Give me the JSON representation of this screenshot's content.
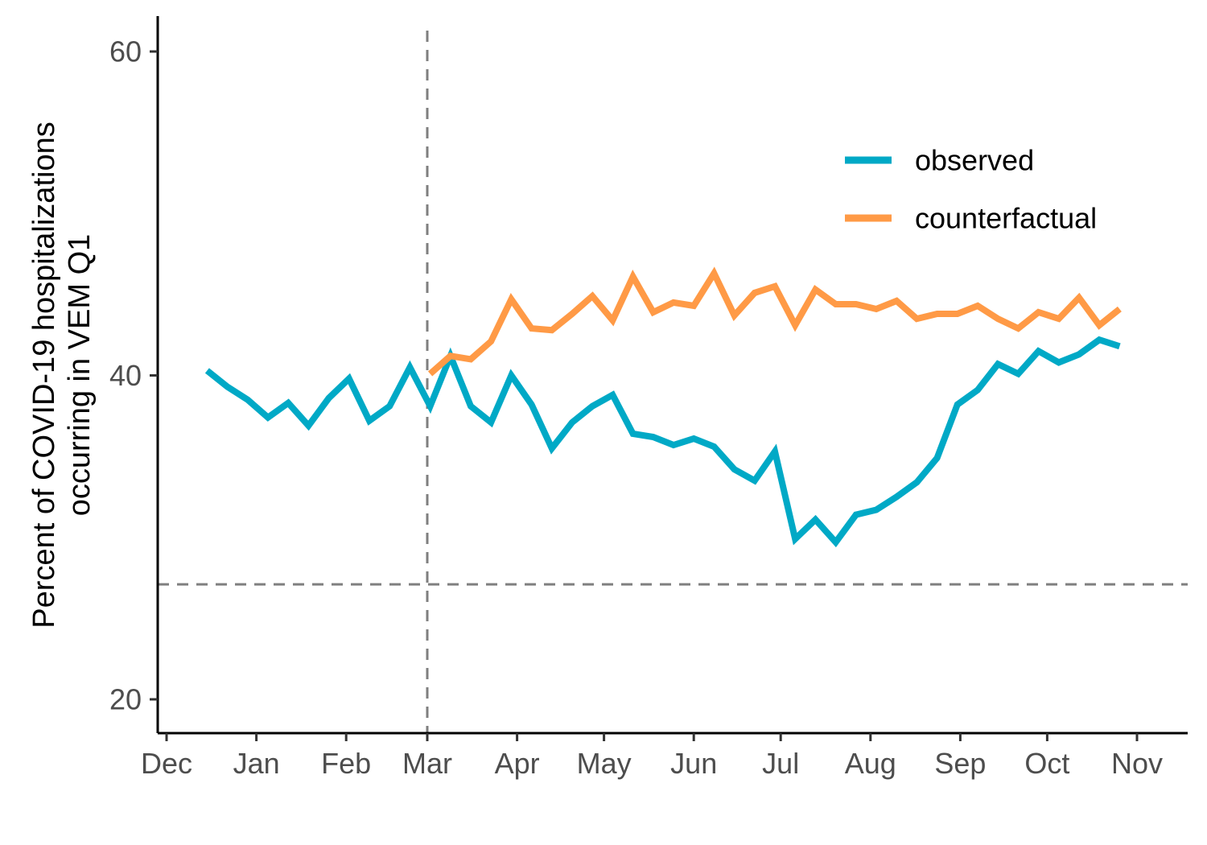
{
  "chart_data": {
    "type": "line",
    "title": "",
    "xlabel": "",
    "ylabel": "Percent of COVID-19 hospitalizations occurring in VEM Q1",
    "ylabel_lines": [
      "Percent of COVID-19 hospitalizations",
      "occurring in VEM Q1"
    ],
    "xlim": [
      "2020-12-01",
      "2021-11-08"
    ],
    "ylim": [
      18,
      62
    ],
    "x_ticks": [
      {
        "date": "2020-12-01",
        "label": "Dec"
      },
      {
        "date": "2021-01-01",
        "label": "Jan"
      },
      {
        "date": "2021-02-01",
        "label": "Feb"
      },
      {
        "date": "2021-03-01",
        "label": "Mar"
      },
      {
        "date": "2021-04-01",
        "label": "Apr"
      },
      {
        "date": "2021-05-01",
        "label": "May"
      },
      {
        "date": "2021-06-01",
        "label": "Jun"
      },
      {
        "date": "2021-07-01",
        "label": "Jul"
      },
      {
        "date": "2021-08-01",
        "label": "Aug"
      },
      {
        "date": "2021-09-01",
        "label": "Sep"
      },
      {
        "date": "2021-10-01",
        "label": "Oct"
      },
      {
        "date": "2021-11-01",
        "label": "Nov"
      }
    ],
    "y_ticks": [
      {
        "value": 20,
        "label": "20"
      },
      {
        "value": 40,
        "label": "40"
      },
      {
        "value": 60,
        "label": "60"
      }
    ],
    "reference_lines": [
      {
        "orientation": "vertical",
        "x": "2021-03-01",
        "style": "dashed",
        "color": "#7f7f7f"
      },
      {
        "orientation": "horizontal",
        "y": 27.1,
        "style": "dashed",
        "color": "#7f7f7f"
      }
    ],
    "grid": false,
    "legend_position": "top-right",
    "series": [
      {
        "name": "observed",
        "color": "#00A9C6",
        "x": [
          "2020-12-15",
          "2020-12-22",
          "2020-12-29",
          "2021-01-05",
          "2021-01-12",
          "2021-01-19",
          "2021-01-26",
          "2021-02-02",
          "2021-02-09",
          "2021-02-16",
          "2021-02-23",
          "2021-03-02",
          "2021-03-09",
          "2021-03-16",
          "2021-03-23",
          "2021-03-30",
          "2021-04-06",
          "2021-04-13",
          "2021-04-20",
          "2021-04-27",
          "2021-05-04",
          "2021-05-11",
          "2021-05-18",
          "2021-05-25",
          "2021-06-01",
          "2021-06-08",
          "2021-06-15",
          "2021-06-22",
          "2021-06-29",
          "2021-07-06",
          "2021-07-13",
          "2021-07-20",
          "2021-07-27",
          "2021-08-03",
          "2021-08-10",
          "2021-08-17",
          "2021-08-24",
          "2021-08-31",
          "2021-09-07",
          "2021-09-14",
          "2021-09-21",
          "2021-09-28",
          "2021-10-05",
          "2021-10-12",
          "2021-10-19",
          "2021-10-26"
        ],
        "y": [
          40.3,
          39.3,
          38.5,
          37.4,
          38.3,
          36.9,
          38.6,
          39.8,
          37.2,
          38.1,
          40.5,
          38.1,
          41.2,
          38.1,
          37.1,
          40.0,
          38.2,
          35.5,
          37.1,
          38.1,
          38.8,
          36.4,
          36.2,
          35.7,
          36.1,
          35.6,
          34.2,
          33.5,
          35.3,
          29.9,
          31.1,
          29.7,
          31.4,
          31.7,
          32.5,
          33.4,
          34.9,
          38.2,
          39.1,
          40.7,
          40.1,
          41.5,
          40.8,
          41.3,
          42.2,
          41.8
        ]
      },
      {
        "name": "counterfactual",
        "color": "#FF9A46",
        "x": [
          "2021-03-02",
          "2021-03-09",
          "2021-03-16",
          "2021-03-23",
          "2021-03-30",
          "2021-04-06",
          "2021-04-13",
          "2021-04-20",
          "2021-04-27",
          "2021-05-04",
          "2021-05-11",
          "2021-05-18",
          "2021-05-25",
          "2021-06-01",
          "2021-06-08",
          "2021-06-15",
          "2021-06-22",
          "2021-06-29",
          "2021-07-06",
          "2021-07-13",
          "2021-07-20",
          "2021-07-27",
          "2021-08-03",
          "2021-08-10",
          "2021-08-17",
          "2021-08-24",
          "2021-08-31",
          "2021-09-07",
          "2021-09-14",
          "2021-09-21",
          "2021-09-28",
          "2021-10-05",
          "2021-10-12",
          "2021-10-19",
          "2021-10-26"
        ],
        "y": [
          40.1,
          41.2,
          41.0,
          42.1,
          44.7,
          42.9,
          42.8,
          43.8,
          44.9,
          43.4,
          46.1,
          43.9,
          44.5,
          44.3,
          46.3,
          43.7,
          45.1,
          45.5,
          43.1,
          45.3,
          44.4,
          44.4,
          44.1,
          44.6,
          43.5,
          43.8,
          43.8,
          44.3,
          43.5,
          42.9,
          43.9,
          43.5,
          44.8,
          43.1,
          44.1
        ]
      }
    ]
  }
}
